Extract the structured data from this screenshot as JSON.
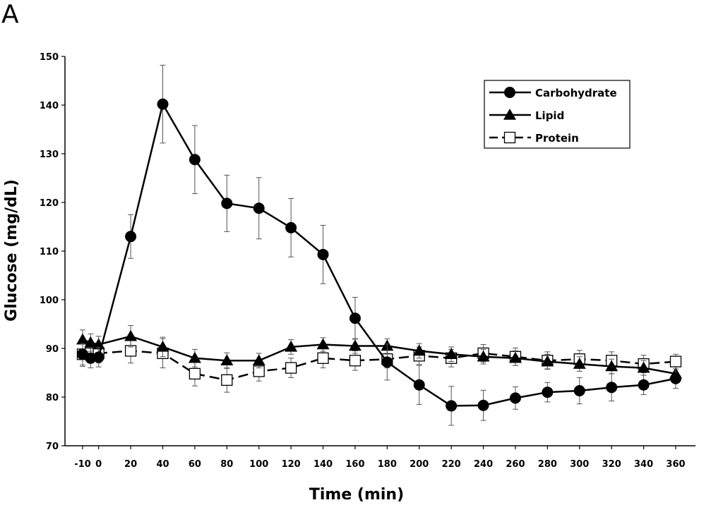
{
  "panel_label": "A",
  "chart_data": {
    "type": "line",
    "title": "",
    "xlabel": "Time (min)",
    "ylabel": "Glucose (mg/dL)",
    "ylim": [
      70,
      150
    ],
    "yticks": [
      70,
      80,
      90,
      100,
      110,
      120,
      130,
      140,
      150
    ],
    "x": [
      -10,
      -5,
      0,
      20,
      40,
      60,
      80,
      100,
      120,
      140,
      160,
      180,
      200,
      220,
      240,
      260,
      280,
      300,
      320,
      340,
      360
    ],
    "xtick_labels": [
      "-10",
      "0",
      "20",
      "40",
      "60",
      "80",
      "100",
      "120",
      "140",
      "160",
      "180",
      "200",
      "220",
      "240",
      "260",
      "280",
      "300",
      "320",
      "340",
      "360"
    ],
    "legend_position": "top-right",
    "series": [
      {
        "name": "Carbohydrate",
        "marker": "circle",
        "line": "solid",
        "color": "#000000",
        "values": [
          88.8,
          88.0,
          88.2,
          113.0,
          140.2,
          128.8,
          119.8,
          118.8,
          114.8,
          109.3,
          96.2,
          87.2,
          82.5,
          78.2,
          78.3,
          79.8,
          81.0,
          81.3,
          82.0,
          82.5,
          83.8
        ],
        "errors": [
          2.2,
          2.0,
          2.0,
          4.5,
          8.0,
          7.0,
          5.8,
          6.3,
          6.0,
          6.0,
          4.3,
          3.7,
          4.0,
          4.0,
          3.1,
          2.3,
          2.0,
          2.7,
          2.8,
          2.0,
          2.0
        ]
      },
      {
        "name": "Lipid",
        "marker": "triangle",
        "line": "solid",
        "color": "#000000",
        "values": [
          91.8,
          91.2,
          90.8,
          92.5,
          90.3,
          88.0,
          87.5,
          87.5,
          90.3,
          90.8,
          90.5,
          90.5,
          89.5,
          88.8,
          88.3,
          88.0,
          87.3,
          86.8,
          86.3,
          86.0,
          84.8
        ],
        "errors": [
          2.0,
          1.8,
          1.7,
          2.2,
          2.0,
          1.8,
          1.6,
          1.5,
          1.5,
          1.4,
          1.5,
          1.5,
          1.5,
          1.5,
          1.5,
          1.5,
          1.5,
          1.5,
          1.5,
          1.5,
          1.5
        ]
      },
      {
        "name": "Protein",
        "marker": "square",
        "line": "dashed",
        "color": "#000000",
        "values": [
          88.8,
          89.0,
          89.0,
          89.5,
          89.0,
          84.8,
          83.5,
          85.3,
          86.0,
          88.0,
          87.5,
          87.8,
          88.5,
          88.0,
          89.0,
          88.3,
          87.5,
          87.8,
          87.5,
          86.8,
          87.3
        ],
        "errors": [
          2.5,
          2.0,
          2.0,
          2.5,
          3.0,
          2.5,
          2.5,
          2.0,
          2.0,
          2.0,
          2.0,
          1.8,
          1.8,
          1.8,
          1.8,
          1.8,
          1.8,
          1.8,
          1.8,
          1.8,
          1.5
        ]
      }
    ]
  }
}
